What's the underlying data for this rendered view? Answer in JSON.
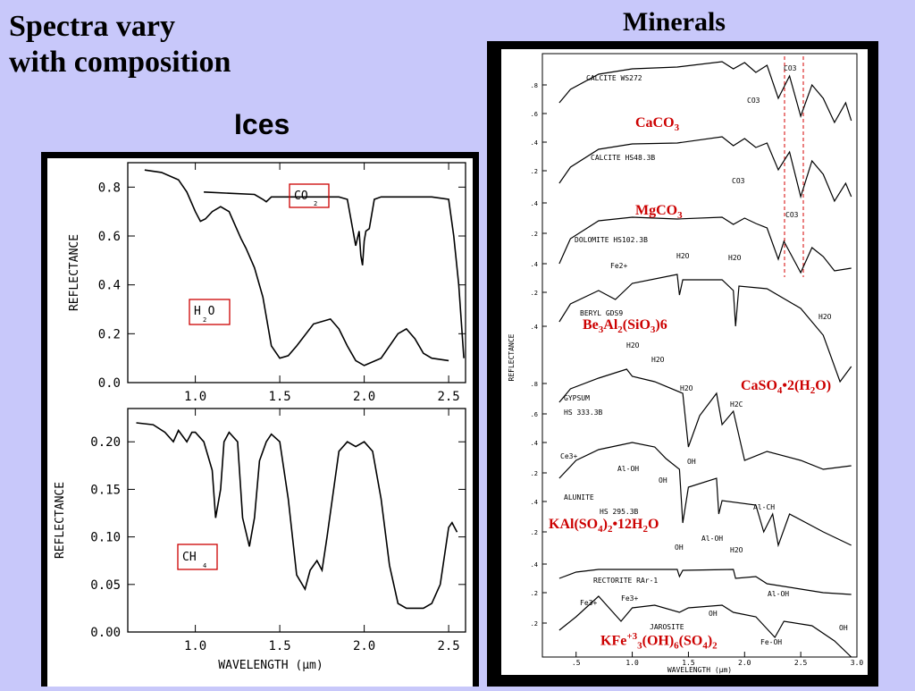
{
  "slide": {
    "title_line1": "Spectra vary",
    "title_line2": "with composition",
    "heading_ices": "Ices",
    "heading_minerals": "Minerals"
  },
  "chart_data": [
    {
      "type": "line",
      "title": "",
      "xlabel": "",
      "ylabel": "REFLECTANCE",
      "xlim": [
        0.6,
        2.6
      ],
      "ylim": [
        0.0,
        0.9
      ],
      "xticks": [
        "1.0",
        "1.5",
        "2.0",
        "2.5"
      ],
      "yticks": [
        "0.0",
        "0.2",
        "0.4",
        "0.6",
        "0.8"
      ],
      "series": [
        {
          "name": "CO2",
          "x": [
            1.05,
            1.2,
            1.35,
            1.4,
            1.42,
            1.45,
            1.55,
            1.7,
            1.85,
            1.9,
            1.95,
            1.97,
            1.98,
            1.99,
            2.0,
            2.01,
            2.03,
            2.06,
            2.1,
            2.2,
            2.3,
            2.4,
            2.5,
            2.53,
            2.56,
            2.58,
            2.59
          ],
          "y": [
            0.78,
            0.775,
            0.77,
            0.75,
            0.74,
            0.76,
            0.76,
            0.76,
            0.76,
            0.75,
            0.56,
            0.62,
            0.52,
            0.48,
            0.58,
            0.62,
            0.63,
            0.75,
            0.76,
            0.76,
            0.76,
            0.76,
            0.75,
            0.6,
            0.4,
            0.2,
            0.1
          ]
        },
        {
          "name": "H2O",
          "x": [
            0.7,
            0.8,
            0.9,
            0.95,
            1.0,
            1.03,
            1.06,
            1.1,
            1.15,
            1.2,
            1.27,
            1.3,
            1.35,
            1.4,
            1.45,
            1.5,
            1.55,
            1.6,
            1.7,
            1.8,
            1.85,
            1.9,
            1.95,
            2.0,
            2.1,
            2.2,
            2.25,
            2.3,
            2.35,
            2.4,
            2.5
          ],
          "y": [
            0.87,
            0.86,
            0.83,
            0.78,
            0.7,
            0.66,
            0.67,
            0.7,
            0.72,
            0.7,
            0.59,
            0.55,
            0.47,
            0.35,
            0.15,
            0.1,
            0.11,
            0.15,
            0.24,
            0.26,
            0.22,
            0.15,
            0.09,
            0.07,
            0.1,
            0.2,
            0.22,
            0.18,
            0.12,
            0.1,
            0.09
          ]
        }
      ],
      "annotations": [
        {
          "label": "CO",
          "sub": "2"
        },
        {
          "label": "H O",
          "sub": "2"
        }
      ]
    },
    {
      "type": "line",
      "title": "",
      "xlabel": "WAVELENGTH (μm)",
      "ylabel": "REFLECTANCE",
      "xlim": [
        0.6,
        2.6
      ],
      "ylim": [
        0.0,
        0.235
      ],
      "xticks": [
        "1.0",
        "1.5",
        "2.0",
        "2.5"
      ],
      "yticks": [
        "0.00",
        "0.05",
        "0.10",
        "0.15",
        "0.20"
      ],
      "series": [
        {
          "name": "CH4",
          "x": [
            0.65,
            0.75,
            0.82,
            0.87,
            0.9,
            0.95,
            0.98,
            1.0,
            1.05,
            1.1,
            1.12,
            1.15,
            1.17,
            1.2,
            1.25,
            1.28,
            1.32,
            1.35,
            1.38,
            1.42,
            1.45,
            1.5,
            1.55,
            1.6,
            1.65,
            1.68,
            1.72,
            1.75,
            1.78,
            1.85,
            1.9,
            1.95,
            2.0,
            2.05,
            2.1,
            2.15,
            2.2,
            2.25,
            2.35,
            2.4,
            2.45,
            2.5,
            2.52,
            2.55
          ],
          "y": [
            0.22,
            0.218,
            0.21,
            0.2,
            0.212,
            0.2,
            0.21,
            0.21,
            0.2,
            0.17,
            0.12,
            0.15,
            0.2,
            0.21,
            0.2,
            0.12,
            0.09,
            0.12,
            0.18,
            0.2,
            0.208,
            0.2,
            0.14,
            0.06,
            0.045,
            0.065,
            0.075,
            0.065,
            0.1,
            0.19,
            0.2,
            0.195,
            0.2,
            0.19,
            0.14,
            0.07,
            0.03,
            0.025,
            0.025,
            0.03,
            0.05,
            0.11,
            0.115,
            0.105
          ]
        }
      ],
      "annotations": [
        {
          "label": "CH",
          "sub": "4"
        }
      ]
    },
    {
      "type": "line",
      "title": "",
      "xlabel": "WAVELENGTH (μm)",
      "ylabel": "REFLECTANCE",
      "xlim": [
        0.2,
        3.0
      ],
      "xticks": [
        ".5",
        "1.0",
        "1.5",
        "2.0",
        "2.5",
        "3.0"
      ],
      "yticks": [
        ".2",
        ".4",
        ".6",
        ".8"
      ],
      "series": [
        {
          "name": "CALCITE WS272",
          "formula": "CaCO3"
        },
        {
          "name": "CALCITE HS48.3B"
        },
        {
          "name": "DOLOMITE HS102.3B",
          "formula": "MgCO3"
        },
        {
          "name": "BERYL GDS9",
          "formula": "Be3Al2(SiO3)6"
        },
        {
          "name": "GYPSUM HS 333.3B",
          "formula": "CaSO4•2(H2O)"
        },
        {
          "name": "ALUNITE HS 295.3B",
          "formula": "KAl(SO4)2•12H2O"
        },
        {
          "name": "RECTORITE RAr-1"
        },
        {
          "name": "JAROSITE",
          "formula": "KFe+33(OH)6(SO4)2"
        }
      ],
      "annotations": [
        "CO3",
        "H2O",
        "Fe2+",
        "Fe3+",
        "Al-OH",
        "OH",
        "Al-CH",
        "Fe-OH",
        "H2C",
        "Ce3+"
      ]
    }
  ]
}
